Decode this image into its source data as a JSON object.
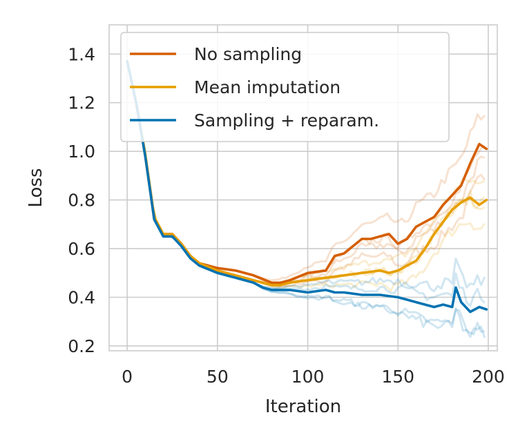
{
  "chart_data": {
    "type": "line",
    "title": "",
    "xlabel": "Iteration",
    "ylabel": "Loss",
    "xlim": [
      -10,
      205
    ],
    "ylim": [
      0.18,
      1.52
    ],
    "xticks": [
      0,
      50,
      100,
      150,
      200
    ],
    "xtick_labels": [
      "0",
      "50",
      "100",
      "150",
      "200"
    ],
    "yticks": [
      0.2,
      0.4,
      0.6,
      0.8,
      1.0,
      1.2,
      1.4
    ],
    "ytick_labels": [
      "0.2",
      "0.4",
      "0.6",
      "0.8",
      "1.0",
      "1.2",
      "1.4"
    ],
    "grid": true,
    "legend_position": "top-left",
    "series": [
      {
        "name": "No sampling",
        "color": "#d55e00",
        "x": [
          0,
          5,
          10,
          15,
          20,
          25,
          30,
          35,
          40,
          50,
          60,
          70,
          80,
          85,
          90,
          100,
          110,
          115,
          120,
          130,
          135,
          140,
          145,
          150,
          155,
          160,
          165,
          170,
          175,
          180,
          185,
          190,
          195,
          199
        ],
        "y": [
          1.37,
          1.2,
          0.98,
          0.72,
          0.66,
          0.66,
          0.62,
          0.57,
          0.54,
          0.52,
          0.51,
          0.49,
          0.46,
          0.46,
          0.47,
          0.5,
          0.51,
          0.57,
          0.58,
          0.64,
          0.64,
          0.65,
          0.66,
          0.62,
          0.64,
          0.69,
          0.71,
          0.73,
          0.78,
          0.82,
          0.86,
          0.95,
          1.03,
          1.01
        ]
      },
      {
        "name": "Mean imputation",
        "color": "#e69f00",
        "x": [
          0,
          5,
          10,
          15,
          20,
          25,
          30,
          35,
          40,
          50,
          60,
          70,
          80,
          85,
          90,
          100,
          110,
          120,
          130,
          140,
          145,
          150,
          155,
          160,
          165,
          170,
          175,
          180,
          185,
          190,
          195,
          199
        ],
        "y": [
          1.37,
          1.2,
          0.99,
          0.73,
          0.66,
          0.66,
          0.62,
          0.57,
          0.54,
          0.51,
          0.49,
          0.47,
          0.45,
          0.45,
          0.46,
          0.47,
          0.48,
          0.49,
          0.5,
          0.51,
          0.5,
          0.51,
          0.53,
          0.55,
          0.6,
          0.66,
          0.71,
          0.76,
          0.79,
          0.81,
          0.78,
          0.8
        ]
      },
      {
        "name": "Sampling + reparam.",
        "color": "#0072b2",
        "x": [
          0,
          5,
          10,
          15,
          20,
          25,
          30,
          35,
          40,
          50,
          60,
          70,
          75,
          80,
          90,
          100,
          110,
          115,
          120,
          130,
          140,
          150,
          155,
          160,
          165,
          170,
          175,
          180,
          182,
          185,
          190,
          195,
          199
        ],
        "y": [
          1.37,
          1.2,
          0.98,
          0.72,
          0.65,
          0.65,
          0.61,
          0.56,
          0.53,
          0.5,
          0.48,
          0.46,
          0.44,
          0.43,
          0.43,
          0.42,
          0.43,
          0.42,
          0.42,
          0.41,
          0.41,
          0.4,
          0.39,
          0.38,
          0.37,
          0.36,
          0.37,
          0.36,
          0.44,
          0.38,
          0.34,
          0.36,
          0.35
        ]
      }
    ]
  }
}
